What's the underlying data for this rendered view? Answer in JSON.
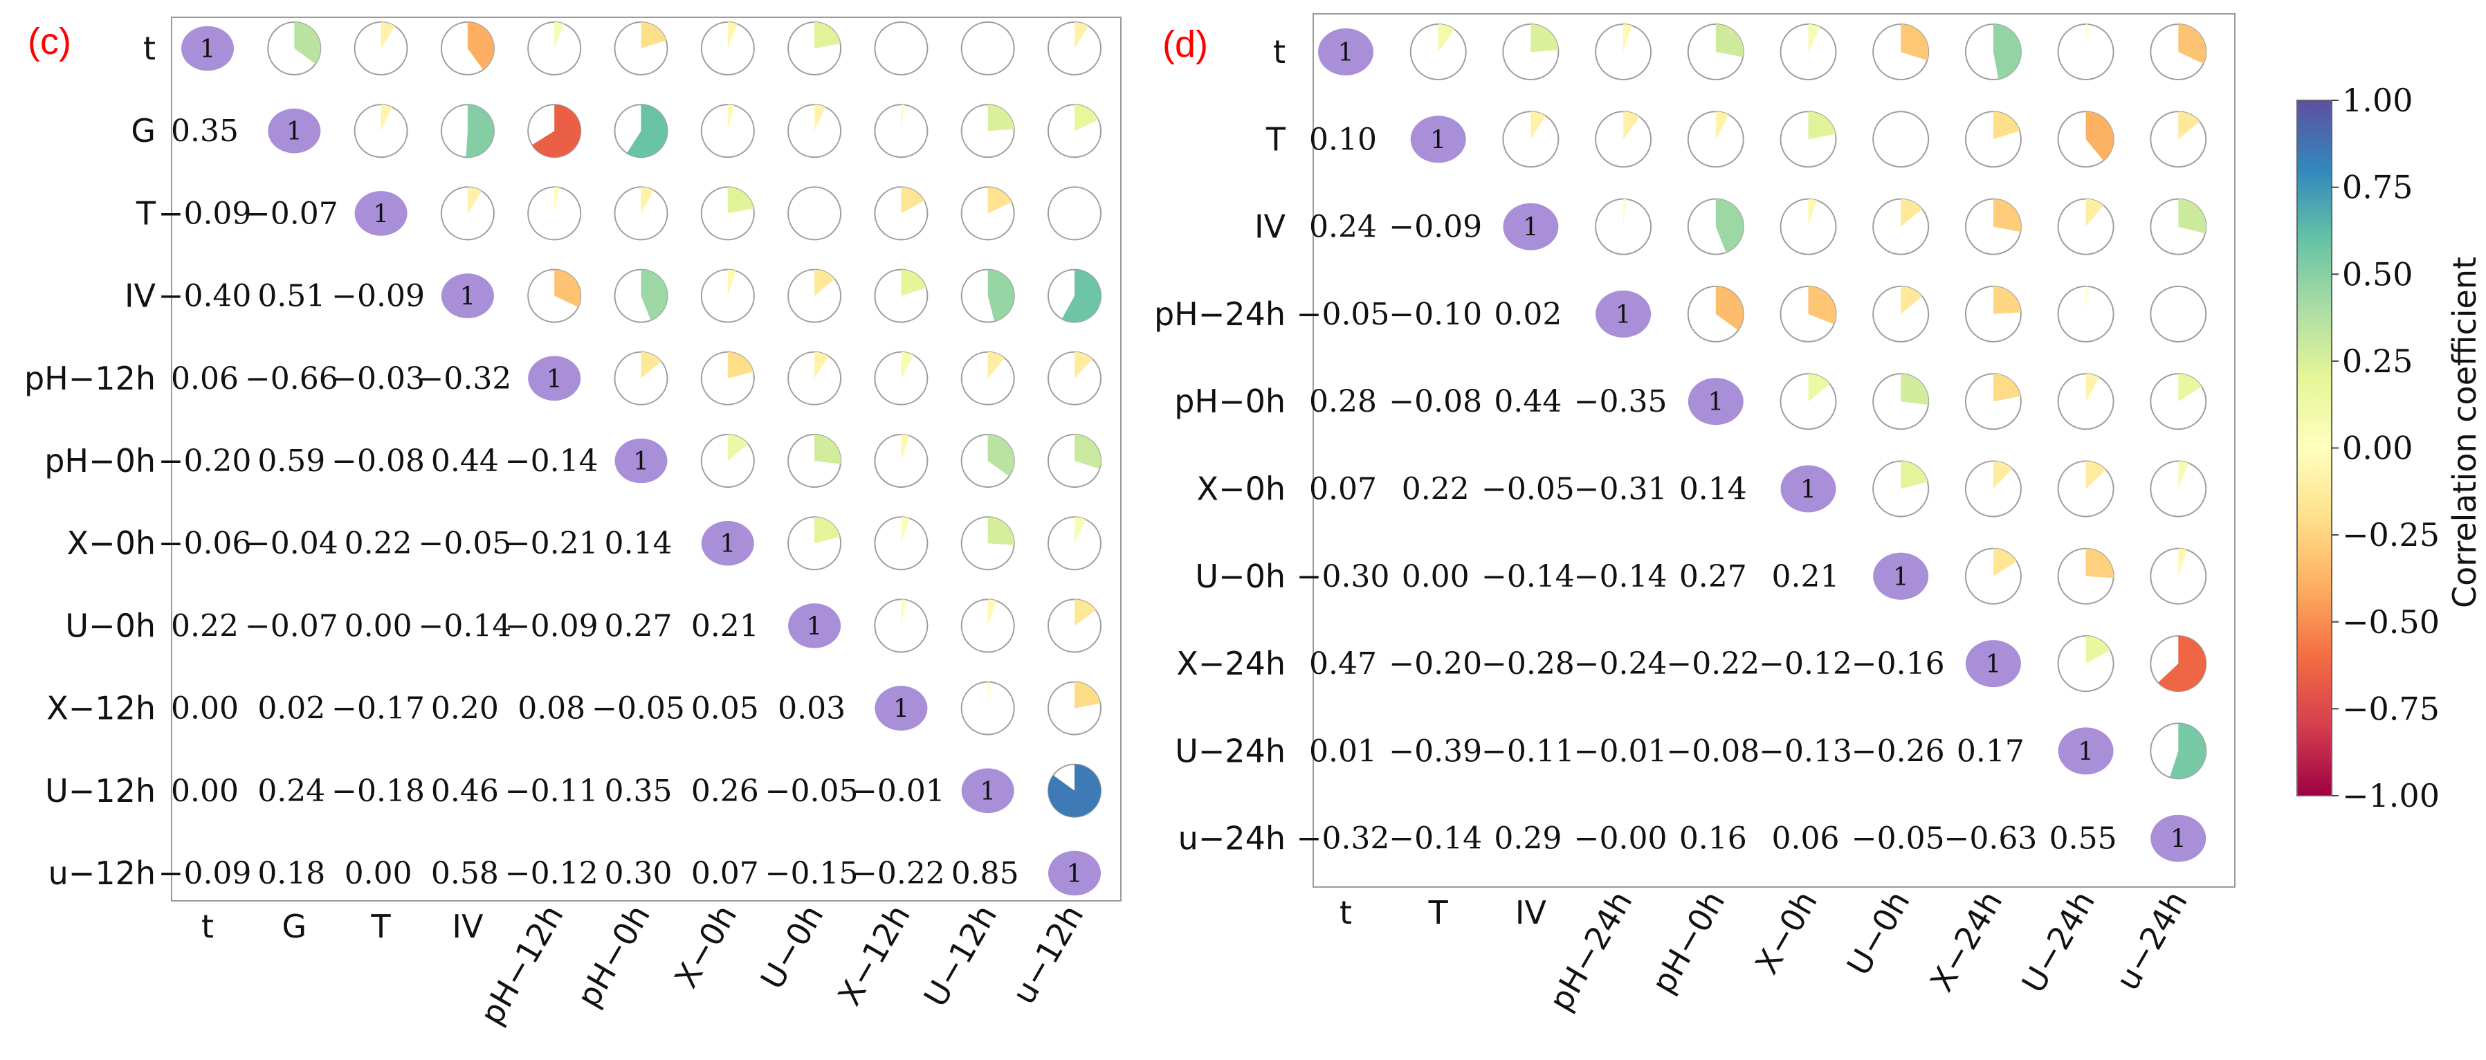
{
  "chart_data": [
    {
      "panel": "(c)",
      "type": "heatmap",
      "style": "correlation matrix: pie-fill circles in upper triangle, coefficient text in lower triangle, '1' on diagonal",
      "variables": [
        "t",
        "G",
        "T",
        "IV",
        "pH−12h",
        "pH−0h",
        "X−0h",
        "U−0h",
        "X−12h",
        "U−12h",
        "u−12h"
      ],
      "diagonal_label": "1",
      "lower_triangle_text": [
        [],
        [
          "0.35"
        ],
        [
          "−0.09",
          "−0.07"
        ],
        [
          "−0.40",
          "0.51",
          "−0.09"
        ],
        [
          "0.06",
          "−0.66",
          "−0.03",
          "−0.32"
        ],
        [
          "−0.20",
          "0.59",
          "−0.08",
          "0.44",
          "−0.14"
        ],
        [
          "−0.06",
          "−0.04",
          "0.22",
          "−0.05",
          "−0.21",
          "0.14"
        ],
        [
          "0.22",
          "−0.07",
          "0.00",
          "−0.14",
          "−0.09",
          "0.27",
          "0.21"
        ],
        [
          "0.00",
          "0.02",
          "−0.17",
          "0.20",
          "0.08",
          "−0.05",
          "0.05",
          "0.03"
        ],
        [
          "0.00",
          "0.24",
          "−0.18",
          "0.46",
          "−0.11",
          "0.35",
          "0.26",
          "−0.05",
          "−0.01"
        ],
        [
          "−0.09",
          "0.18",
          "0.00",
          "0.58",
          "−0.12",
          "0.30",
          "0.07",
          "−0.15",
          "−0.22",
          "0.85"
        ]
      ]
    },
    {
      "panel": "(d)",
      "type": "heatmap",
      "style": "correlation matrix: pie-fill circles in upper triangle, coefficient text in lower triangle, '1' on diagonal",
      "variables": [
        "t",
        "T",
        "IV",
        "pH−24h",
        "pH−0h",
        "X−0h",
        "U−0h",
        "X−24h",
        "U−24h",
        "u−24h"
      ],
      "diagonal_label": "1",
      "lower_triangle_text": [
        [],
        [
          "0.10"
        ],
        [
          "0.24",
          "−0.09"
        ],
        [
          "−0.05",
          "−0.10",
          "0.02"
        ],
        [
          "0.28",
          "−0.08",
          "0.44",
          "−0.35"
        ],
        [
          "0.07",
          "0.22",
          "−0.05",
          "−0.31",
          "0.14"
        ],
        [
          "−0.30",
          "0.00",
          "−0.14",
          "−0.14",
          "0.27",
          "0.21"
        ],
        [
          "0.47",
          "−0.20",
          "−0.28",
          "−0.24",
          "−0.22",
          "−0.12",
          "−0.16"
        ],
        [
          "0.01",
          "−0.39",
          "−0.11",
          "−0.01",
          "−0.08",
          "−0.13",
          "−0.26",
          "0.17"
        ],
        [
          "−0.32",
          "−0.14",
          "0.29",
          "−0.00",
          "0.16",
          "0.06",
          "−0.05",
          "−0.63",
          "0.55"
        ]
      ]
    }
  ],
  "colorbar": {
    "label": "Correlation coefficient",
    "range": [
      -1.0,
      1.0
    ],
    "ticks": [
      "1.00",
      "0.75",
      "0.50",
      "0.25",
      "0.00",
      "−0.25",
      "−0.50",
      "−0.75",
      "−1.00"
    ],
    "tick_values": [
      1.0,
      0.75,
      0.5,
      0.25,
      0.0,
      -0.25,
      -0.5,
      -0.75,
      -1.0
    ],
    "colormap": "Spectral",
    "stops": [
      "#9e0142",
      "#d53e4f",
      "#f46d43",
      "#fdae61",
      "#fee08b",
      "#ffffbf",
      "#e6f598",
      "#abdda4",
      "#66c2a5",
      "#3288bd",
      "#5e4fa2"
    ]
  },
  "colors": {
    "diagonal_fill": "#a98ed8",
    "circle_outline": "#9e9e9e",
    "frame": "#9a9a9a",
    "panel_letter": "#ff0000"
  }
}
